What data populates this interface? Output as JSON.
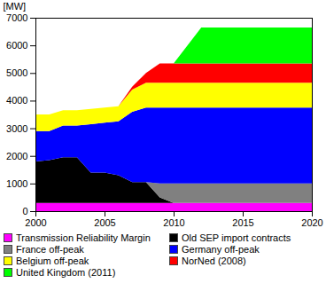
{
  "chart_data": {
    "type": "area",
    "stacked": true,
    "ylabel": "[MW]",
    "x": [
      2000,
      2001,
      2002,
      2003,
      2004,
      2005,
      2006,
      2007,
      2008,
      2009,
      2010,
      2011,
      2012,
      2013,
      2014,
      2015,
      2016,
      2017,
      2018,
      2019,
      2020
    ],
    "series": [
      {
        "name": "Transmission Reliability Margin",
        "color": "#ff00ff",
        "values": [
          300,
          300,
          300,
          300,
          300,
          300,
          300,
          300,
          300,
          300,
          300,
          300,
          300,
          300,
          300,
          300,
          300,
          300,
          300,
          300,
          300
        ]
      },
      {
        "name": "Old SEP import contracts",
        "color": "#000000",
        "values": [
          1500,
          1550,
          1650,
          1650,
          1100,
          1100,
          1000,
          750,
          750,
          200,
          0,
          0,
          0,
          0,
          0,
          0,
          0,
          0,
          0,
          0,
          0
        ]
      },
      {
        "name": "France off-peak",
        "color": "#808080",
        "values": [
          0,
          0,
          0,
          0,
          0,
          0,
          0,
          0,
          0,
          500,
          700,
          700,
          700,
          700,
          700,
          700,
          700,
          700,
          700,
          700,
          700
        ]
      },
      {
        "name": "Germany off-peak",
        "color": "#0000ff",
        "values": [
          1100,
          1050,
          1150,
          1150,
          1750,
          1800,
          1950,
          2550,
          2700,
          2750,
          2750,
          2750,
          2750,
          2750,
          2750,
          2750,
          2750,
          2750,
          2750,
          2750,
          2750
        ]
      },
      {
        "name": "Belgium off-peak",
        "color": "#ffff00",
        "values": [
          600,
          600,
          550,
          550,
          550,
          550,
          550,
          800,
          900,
          900,
          900,
          900,
          900,
          900,
          900,
          900,
          900,
          900,
          900,
          900,
          900
        ]
      },
      {
        "name": "NorNed (2008)",
        "color": "#ff0000",
        "values": [
          0,
          0,
          0,
          0,
          0,
          0,
          0,
          100,
          350,
          700,
          700,
          700,
          700,
          700,
          700,
          700,
          700,
          700,
          700,
          700,
          700
        ]
      },
      {
        "name": "United Kingdom (2011)",
        "color": "#00ff00",
        "values": [
          0,
          0,
          0,
          0,
          0,
          0,
          0,
          0,
          0,
          0,
          0,
          650,
          1300,
          1300,
          1300,
          1300,
          1300,
          1300,
          1300,
          1300,
          1300
        ]
      }
    ],
    "xlim": [
      2000,
      2020
    ],
    "ylim": [
      0,
      7000
    ],
    "xticks": [
      2000,
      2005,
      2010,
      2015,
      2020
    ],
    "yticks": [
      0,
      1000,
      2000,
      3000,
      4000,
      5000,
      6000,
      7000
    ],
    "grid": false,
    "legend": "bottom"
  }
}
